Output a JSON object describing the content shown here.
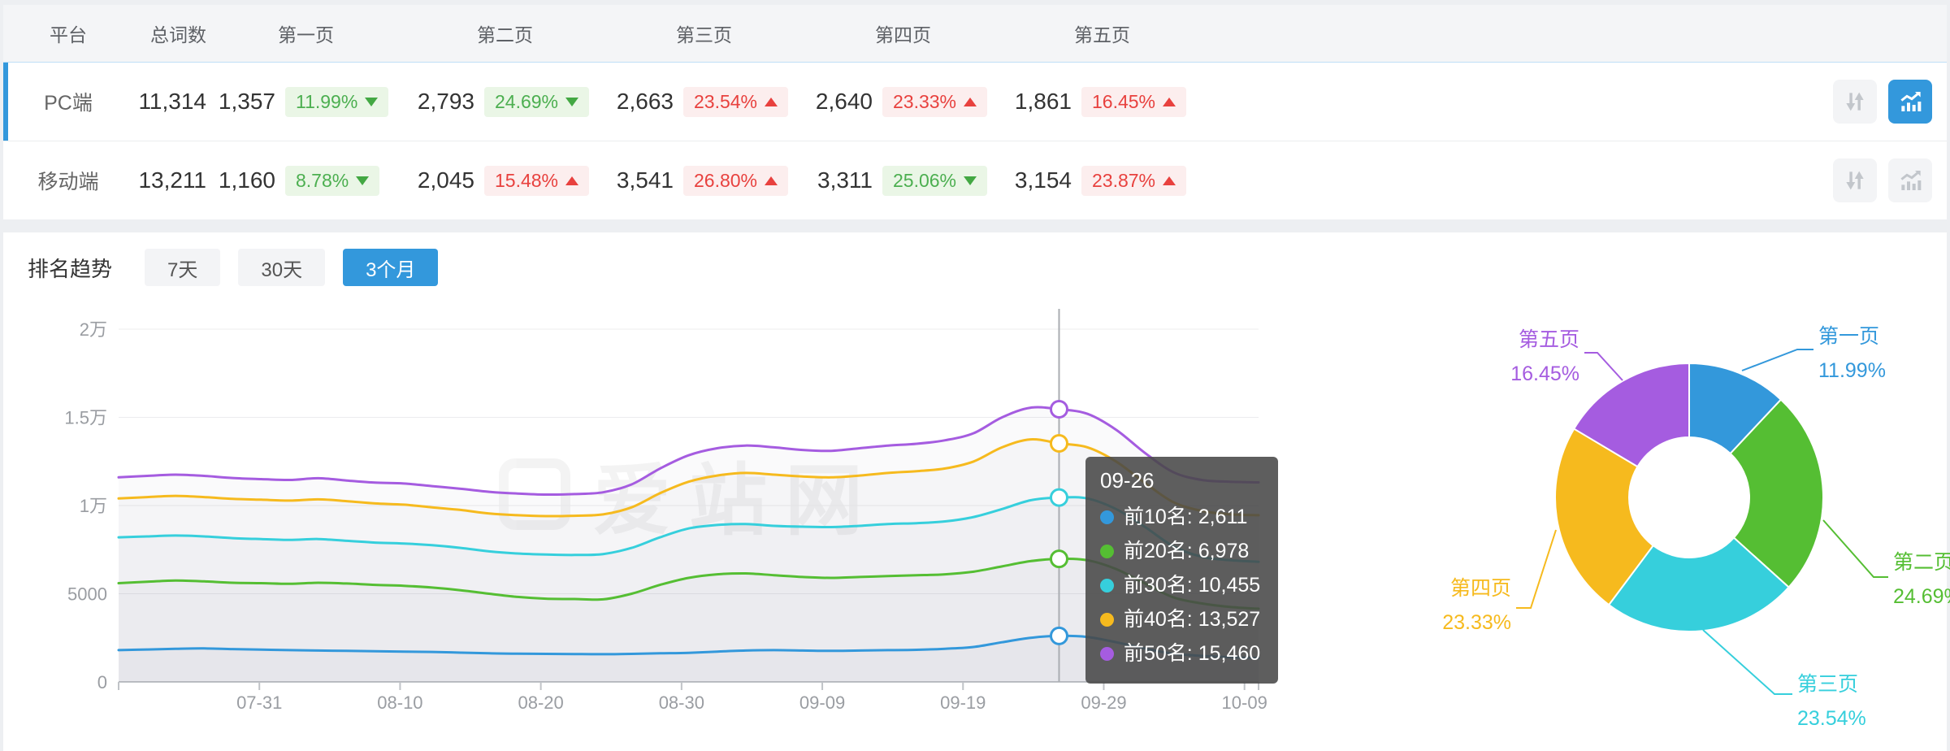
{
  "table": {
    "columns": [
      "平台",
      "总词数",
      "第一页",
      "第二页",
      "第三页",
      "第四页",
      "第五页"
    ],
    "rows": [
      {
        "platform": "PC端",
        "total": "11,314",
        "selected": true,
        "trend_chart_active": true,
        "pages": [
          {
            "count": "1,357",
            "pct": "11.99%",
            "dir": "down"
          },
          {
            "count": "2,793",
            "pct": "24.69%",
            "dir": "down"
          },
          {
            "count": "2,663",
            "pct": "23.54%",
            "dir": "up"
          },
          {
            "count": "2,640",
            "pct": "23.33%",
            "dir": "up"
          },
          {
            "count": "1,861",
            "pct": "16.45%",
            "dir": "up"
          }
        ]
      },
      {
        "platform": "移动端",
        "total": "13,211",
        "selected": false,
        "trend_chart_active": false,
        "pages": [
          {
            "count": "1,160",
            "pct": "8.78%",
            "dir": "down"
          },
          {
            "count": "2,045",
            "pct": "15.48%",
            "dir": "up"
          },
          {
            "count": "3,541",
            "pct": "26.80%",
            "dir": "up"
          },
          {
            "count": "3,311",
            "pct": "25.06%",
            "dir": "down"
          },
          {
            "count": "3,154",
            "pct": "23.87%",
            "dir": "up"
          }
        ]
      }
    ],
    "icons": {
      "sort": "sort-arrows-icon",
      "trend": "trend-chart-icon"
    }
  },
  "trend": {
    "title": "排名趋势",
    "tabs": [
      {
        "label": "7天",
        "active": false
      },
      {
        "label": "30天",
        "active": false
      },
      {
        "label": "3个月",
        "active": true
      }
    ]
  },
  "watermark": "爱站网",
  "tooltip": {
    "date": "09-26",
    "items": [
      {
        "color": "#3398DB",
        "text": "前10名: 2,611"
      },
      {
        "color": "#55BE33",
        "text": "前20名: 6,978"
      },
      {
        "color": "#36CFDC",
        "text": "前30名: 10,455"
      },
      {
        "color": "#F6BA1E",
        "text": "前40名: 13,527"
      },
      {
        "color": "#A55CE0",
        "text": "前50名: 15,460"
      }
    ]
  },
  "colors": {
    "accent_blue": "#3398DC",
    "green_up_bad": "#E8413E",
    "green_down_good": "#4CAF50",
    "badge_green_bg": "#EAF6E6",
    "badge_red_bg": "#FCEEEE",
    "axis_label": "#9A9DA2",
    "grid": "#ECECEE"
  },
  "chart_data": [
    {
      "type": "line",
      "title": "排名趋势 (3个月)",
      "legend_position": "tooltip-only",
      "grid": true,
      "x_axis": {
        "start_date": "07-21",
        "end_date": "10-10",
        "total_days": 81,
        "tick_labels": [
          "07-31",
          "08-10",
          "08-20",
          "08-30",
          "09-09",
          "09-19",
          "09-29",
          "10-09"
        ],
        "tick_day_offsets": [
          10,
          20,
          30,
          40,
          50,
          60,
          70,
          80
        ]
      },
      "y_axis": {
        "min": 0,
        "max": 20000,
        "tick_values": [
          0,
          5000,
          10000,
          15000,
          20000
        ],
        "tick_labels": [
          "0",
          "5000",
          "1万",
          "1.5万",
          "2万"
        ]
      },
      "crosshair": {
        "date": "09-26",
        "point_index": 33,
        "values": [
          2611,
          6978,
          10455,
          13527,
          15460
        ]
      },
      "series": [
        {
          "name": "前10名",
          "color": "#3398DB",
          "values": [
            1800,
            1840,
            1880,
            1900,
            1860,
            1830,
            1800,
            1780,
            1760,
            1740,
            1720,
            1700,
            1660,
            1620,
            1600,
            1590,
            1580,
            1570,
            1590,
            1620,
            1650,
            1720,
            1780,
            1800,
            1780,
            1760,
            1780,
            1800,
            1820,
            1880,
            1980,
            2250,
            2500,
            2611,
            2550,
            2250,
            1900,
            1600,
            1480,
            1400,
            1357
          ]
        },
        {
          "name": "前20名",
          "color": "#55BE33",
          "values": [
            5600,
            5680,
            5750,
            5700,
            5620,
            5600,
            5560,
            5620,
            5580,
            5500,
            5450,
            5350,
            5200,
            5000,
            4820,
            4720,
            4700,
            4680,
            5000,
            5500,
            5900,
            6100,
            6150,
            6050,
            5950,
            5900,
            5950,
            6000,
            6050,
            6100,
            6250,
            6550,
            6850,
            6978,
            6900,
            6400,
            5600,
            4800,
            4450,
            4250,
            4150
          ]
        },
        {
          "name": "前30名",
          "color": "#36CFDC",
          "values": [
            8200,
            8250,
            8300,
            8250,
            8150,
            8100,
            8050,
            8100,
            8000,
            7900,
            7850,
            7750,
            7600,
            7400,
            7280,
            7220,
            7200,
            7250,
            7600,
            8200,
            8700,
            8900,
            8950,
            8850,
            8800,
            8780,
            8850,
            8950,
            9000,
            9100,
            9350,
            9800,
            10300,
            10455,
            10400,
            9800,
            8800,
            7700,
            7100,
            6900,
            6813
          ]
        },
        {
          "name": "前40名",
          "color": "#F6BA1E",
          "values": [
            10400,
            10480,
            10550,
            10480,
            10380,
            10330,
            10280,
            10350,
            10250,
            10120,
            10050,
            9900,
            9750,
            9550,
            9450,
            9400,
            9420,
            9500,
            9900,
            10700,
            11350,
            11700,
            11850,
            11750,
            11650,
            11600,
            11700,
            11850,
            11950,
            12100,
            12500,
            13300,
            13750,
            13527,
            13300,
            12500,
            11300,
            10200,
            9700,
            9500,
            9453
          ]
        },
        {
          "name": "前50名",
          "color": "#A55CE0",
          "values": [
            11600,
            11680,
            11750,
            11680,
            11560,
            11500,
            11450,
            11550,
            11420,
            11300,
            11250,
            11100,
            10950,
            10780,
            10680,
            10620,
            10650,
            10750,
            11200,
            12100,
            12850,
            13250,
            13400,
            13300,
            13150,
            13100,
            13250,
            13400,
            13500,
            13700,
            14100,
            15000,
            15550,
            15460,
            15200,
            14300,
            13000,
            11900,
            11450,
            11350,
            11314
          ]
        }
      ]
    },
    {
      "type": "pie",
      "donut": true,
      "labels": [
        "第一页",
        "第二页",
        "第三页",
        "第四页",
        "第五页"
      ],
      "values": [
        11.99,
        24.69,
        23.54,
        23.33,
        16.45
      ],
      "percent_labels": [
        "11.99%",
        "24.69%",
        "23.54%",
        "23.33%",
        "16.45%"
      ],
      "colors": [
        "#3398DB",
        "#55BE33",
        "#36CFDC",
        "#F6BA1E",
        "#A55CE0"
      ],
      "legend_position": "outside-callout"
    }
  ]
}
